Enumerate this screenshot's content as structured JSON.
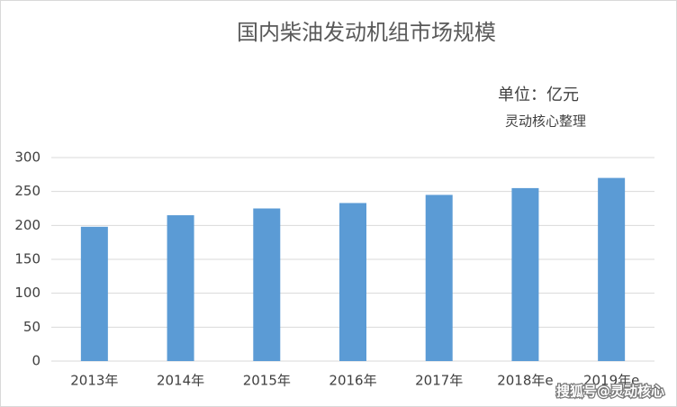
{
  "chart_data": {
    "type": "bar",
    "title": "国内柴油发动机组市场规模",
    "annotations": [
      "单位：亿元",
      "灵动核心整理"
    ],
    "watermark": "搜狐号@灵动核心",
    "categories": [
      "2013年",
      "2014年",
      "2015年",
      "2016年",
      "2017年",
      "2018年e",
      "2019年e"
    ],
    "values": [
      198,
      215,
      225,
      233,
      245,
      255,
      270
    ],
    "color": "#5b9bd5",
    "ylim": [
      0,
      300
    ],
    "yticks": [
      0,
      50,
      100,
      150,
      200,
      250,
      300
    ],
    "grid": true
  }
}
